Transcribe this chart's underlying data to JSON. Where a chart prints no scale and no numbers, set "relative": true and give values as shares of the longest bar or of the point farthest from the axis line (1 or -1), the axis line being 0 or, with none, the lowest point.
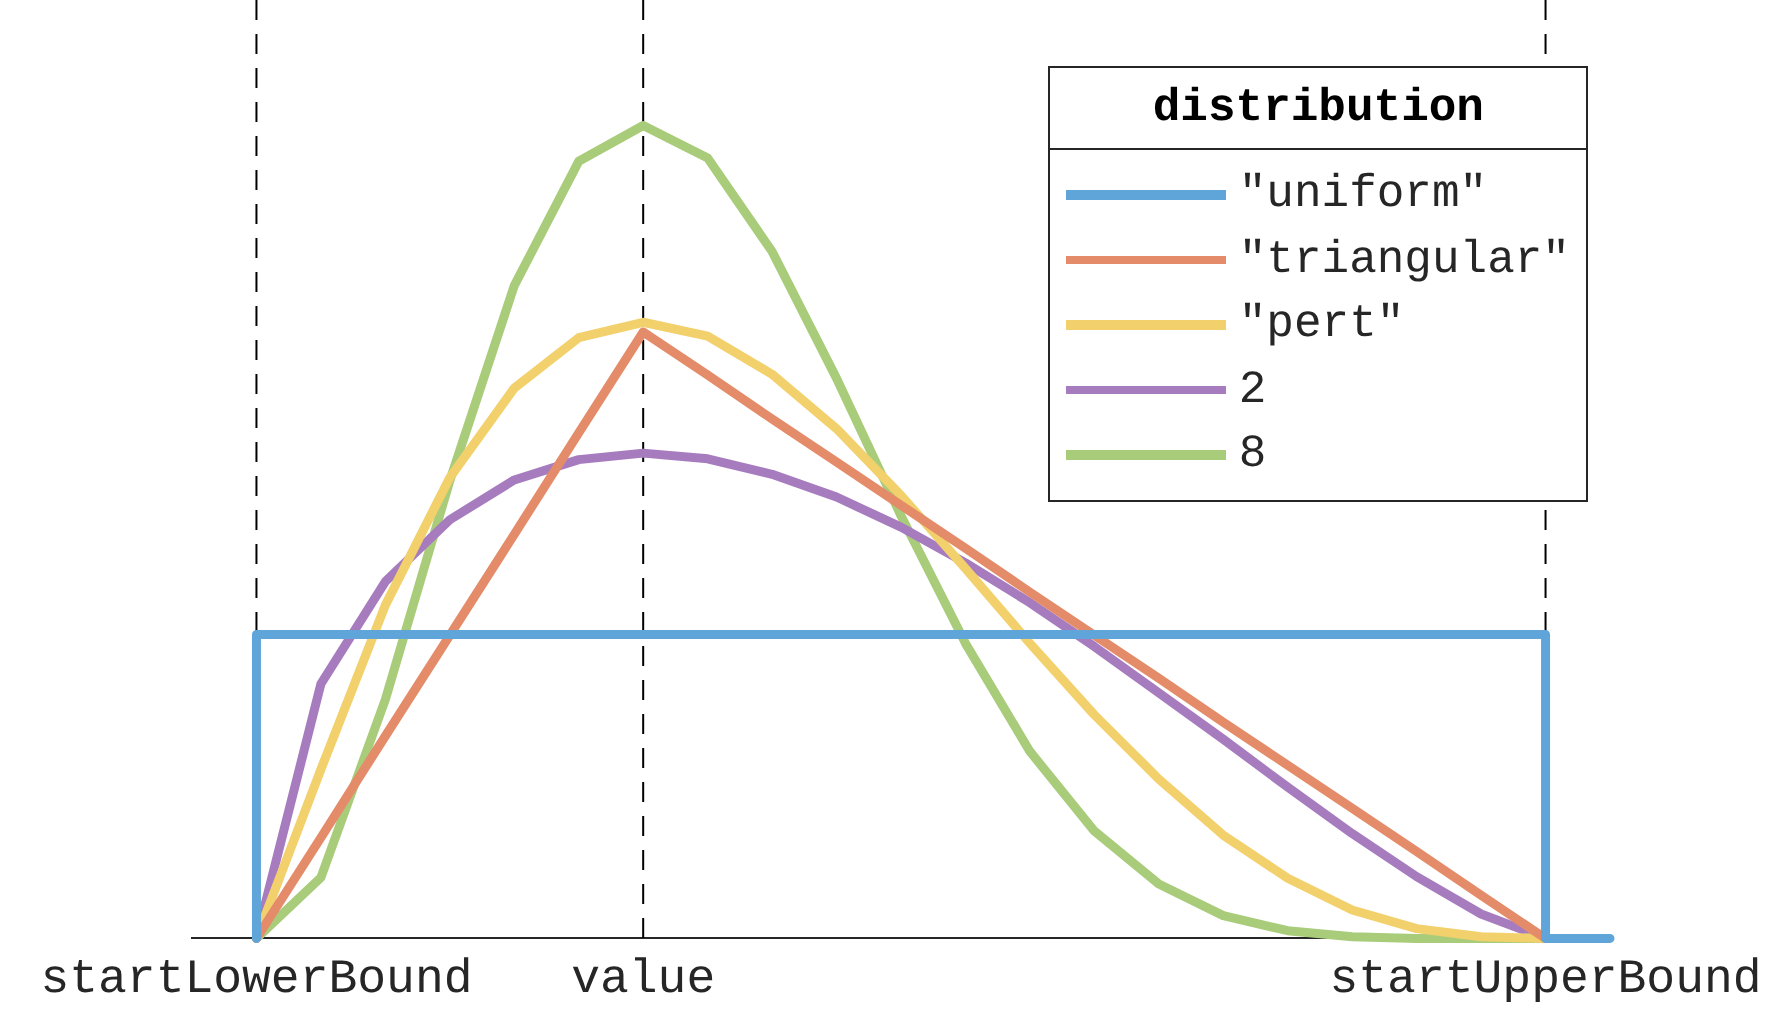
{
  "chart_data": {
    "type": "line",
    "relative": true,
    "legend": "top right",
    "legend_title": "distribution",
    "marker": "none",
    "line_style": "solid",
    "grid": false,
    "categories": [
      null,
      "startLowerBound",
      null,
      null,
      null,
      null,
      null,
      "value",
      null,
      null,
      null,
      null,
      null,
      null,
      null,
      null,
      null,
      null,
      null,
      null,
      null,
      "startUpperBound",
      null
    ],
    "ref_lines": [
      {
        "axis": "x",
        "value": "startLowerBound",
        "color": "#000000",
        "line_style": "dashed"
      },
      {
        "axis": "x",
        "value": "value",
        "color": "#000000",
        "line_style": "dashed"
      },
      {
        "axis": "x",
        "value": "startUpperBound",
        "color": "#000000",
        "line_style": "dashed"
      }
    ],
    "series": [
      {
        "name": "\"uniform\"",
        "type": "step",
        "color": "#5fa5d9",
        "values": [
          null,
          0,
          0.374,
          0.374,
          0.374,
          0.374,
          0.374,
          0.374,
          0.374,
          0.374,
          0.374,
          0.374,
          0.374,
          0.374,
          0.374,
          0.374,
          0.374,
          0.374,
          0.374,
          0.374,
          0.374,
          0.374,
          0
        ]
      },
      {
        "name": "\"triangular\"",
        "color": "#e48c69",
        "values": [
          null,
          0,
          0.124,
          0.249,
          0.373,
          0.497,
          0.622,
          0.746,
          0.693,
          0.639,
          0.586,
          0.533,
          0.48,
          0.426,
          0.373,
          0.32,
          0.266,
          0.213,
          0.16,
          0.107,
          0.053,
          0,
          null
        ]
      },
      {
        "name": "\"pert\"",
        "color": "#f2d06b",
        "values": [
          null,
          0,
          0.208,
          0.41,
          0.567,
          0.677,
          0.739,
          0.758,
          0.741,
          0.694,
          0.627,
          0.545,
          0.455,
          0.363,
          0.275,
          0.196,
          0.127,
          0.074,
          0.035,
          0.012,
          0.002,
          0,
          null
        ]
      },
      {
        "name": "2",
        "color": "#a77cbf",
        "values": [
          null,
          0,
          0.313,
          0.439,
          0.515,
          0.564,
          0.589,
          0.597,
          0.59,
          0.571,
          0.543,
          0.506,
          0.462,
          0.413,
          0.359,
          0.302,
          0.245,
          0.186,
          0.129,
          0.076,
          0.03,
          0,
          null
        ]
      },
      {
        "name": "8",
        "color": "#a8cc7a",
        "values": [
          null,
          0,
          0.075,
          0.294,
          0.563,
          0.803,
          0.956,
          1,
          0.96,
          0.845,
          0.689,
          0.52,
          0.363,
          0.23,
          0.132,
          0.067,
          0.028,
          0.0095,
          0.002,
          0,
          0,
          0,
          null
        ]
      }
    ]
  }
}
